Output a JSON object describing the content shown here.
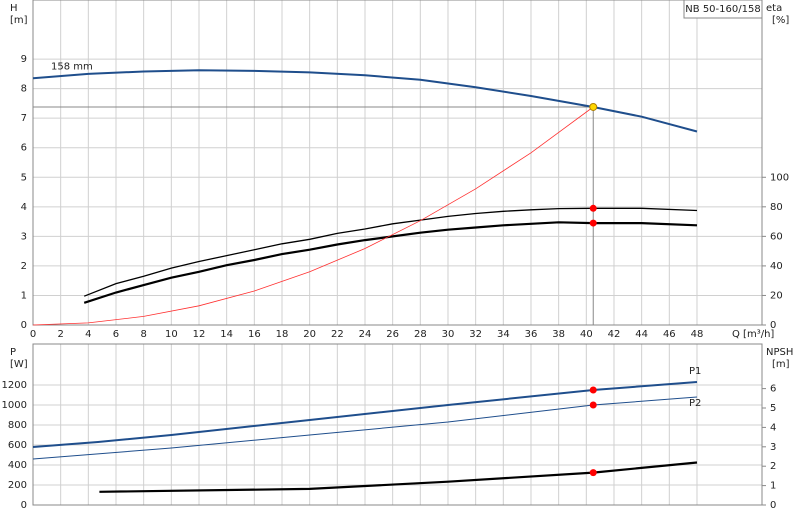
{
  "chart_data": [
    {
      "type": "line",
      "title": "NB 50-160/158",
      "ylabel": "H",
      "yunit": "[m]",
      "y2label": "eta",
      "y2unit": "[%]",
      "xlabel": "Q [m³/h]",
      "xlim": [
        0,
        52.7
      ],
      "xticks": [
        0,
        2,
        4,
        6,
        8,
        10,
        12,
        14,
        16,
        18,
        20,
        22,
        24,
        26,
        28,
        30,
        32,
        34,
        36,
        38,
        40,
        42,
        44,
        46,
        48
      ],
      "ylim": [
        0,
        11
      ],
      "yticks": [
        0,
        1,
        2,
        3,
        4,
        5,
        6,
        7,
        8,
        9
      ],
      "y2lim": [
        0,
        220
      ],
      "y2ticks": [
        0,
        20,
        40,
        60,
        80,
        100
      ],
      "grid": true,
      "series": [
        {
          "label": "158 mm",
          "color": "#1f4e8c",
          "width": 2,
          "x": [
            0,
            4,
            8,
            12,
            16,
            20,
            24,
            28,
            32,
            36,
            40.5,
            44,
            48
          ],
          "values": [
            8.35,
            8.5,
            8.58,
            8.62,
            8.6,
            8.55,
            8.45,
            8.3,
            8.05,
            7.75,
            7.38,
            7.05,
            6.55
          ]
        },
        {
          "color": "#000000",
          "width": 1.3,
          "axis": "y2",
          "x": [
            3.7,
            6,
            8,
            10,
            12,
            14,
            16,
            18,
            20,
            22,
            24,
            26,
            28,
            30,
            32,
            34,
            36,
            38,
            40.5,
            44,
            48
          ],
          "values": [
            19.5,
            28,
            33,
            38.5,
            43,
            47,
            51,
            55,
            58,
            62,
            65,
            68.5,
            71,
            73.5,
            75.5,
            77,
            78,
            78.8,
            79,
            79,
            77.5
          ]
        },
        {
          "color": "#000000",
          "width": 2.2,
          "axis": "y2",
          "x": [
            3.7,
            6,
            8,
            10,
            12,
            14,
            16,
            18,
            20,
            22,
            24,
            26,
            28,
            30,
            32,
            34,
            36,
            38,
            40.5,
            44,
            48
          ],
          "values": [
            15,
            22,
            27,
            32,
            36,
            40.5,
            44,
            48,
            51,
            54.5,
            57.5,
            60,
            62.5,
            64.5,
            66,
            67.5,
            68.5,
            69.5,
            69,
            69,
            67.5
          ]
        },
        {
          "color": "#ff3030",
          "width": 0.8,
          "x": [
            0,
            4,
            8,
            12,
            16,
            20,
            24,
            28,
            32,
            36,
            40.5
          ],
          "values": [
            0,
            0.07,
            0.29,
            0.65,
            1.15,
            1.8,
            2.59,
            3.53,
            4.61,
            5.83,
            7.38
          ]
        }
      ],
      "markers": [
        {
          "x": 40.5,
          "y": 7.38,
          "color": "#ffd700",
          "crosshair": true
        },
        {
          "x": 40.5,
          "y": 79,
          "color": "#ff0000",
          "axis": "y2"
        },
        {
          "x": 40.5,
          "y": 69,
          "color": "#ff0000",
          "axis": "y2"
        }
      ]
    },
    {
      "type": "line",
      "ylabel": "P",
      "yunit": "[W]",
      "y2label": "NPSH",
      "y2unit": "[m]",
      "xlim": [
        0,
        52.7
      ],
      "ylim": [
        0,
        1610
      ],
      "yticks": [
        0,
        200,
        400,
        600,
        800,
        1000,
        1200
      ],
      "y2lim": [
        0,
        8.3
      ],
      "y2ticks": [
        0,
        1,
        2,
        3,
        4,
        5,
        6
      ],
      "grid": true,
      "series": [
        {
          "label": "P1",
          "color": "#1f4e8c",
          "width": 2,
          "x": [
            0,
            4.7,
            10,
            20,
            30,
            40.5,
            48
          ],
          "values": [
            580,
            630,
            700,
            850,
            1000,
            1150,
            1230
          ]
        },
        {
          "label": "P2",
          "color": "#1f4e8c",
          "width": 1,
          "x": [
            0,
            10,
            20,
            30,
            40.5,
            48
          ],
          "values": [
            460,
            570,
            700,
            830,
            1000,
            1080
          ]
        },
        {
          "color": "#000000",
          "width": 2.2,
          "axis": "y2",
          "x": [
            4.8,
            20,
            30,
            40.5,
            48
          ],
          "values": [
            0.68,
            0.83,
            1.2,
            1.67,
            2.19
          ]
        }
      ],
      "markers": [
        {
          "x": 40.5,
          "y": 1150,
          "color": "#ff0000"
        },
        {
          "x": 40.5,
          "y": 1000,
          "color": "#ff0000"
        },
        {
          "x": 40.5,
          "y": 1.67,
          "color": "#ff0000",
          "axis": "y2"
        }
      ]
    }
  ]
}
